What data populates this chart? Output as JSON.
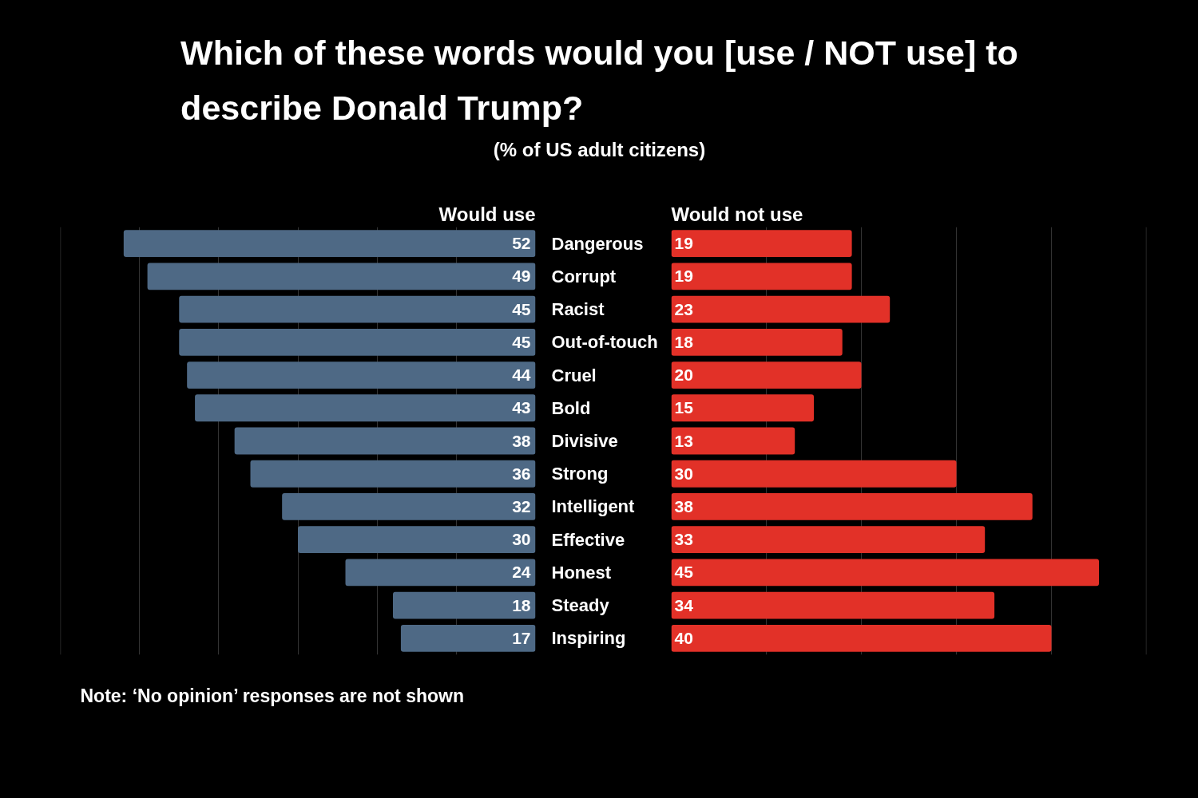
{
  "chart_data": [
    {
      "type": "other",
      "title": "Which of these words would you [use / NOT use] to describe Donald Trump?",
      "subtitle": "(% of US adult citizens)"
    },
    {
      "type": "bar",
      "orientation": "horizontal",
      "title": "Would use",
      "categories": [
        "Dangerous",
        "Corrupt",
        "Racist",
        "Out-of-touch",
        "Cruel",
        "Bold",
        "Divisive",
        "Strong",
        "Intelligent",
        "Effective",
        "Honest",
        "Steady",
        "Inspiring"
      ],
      "values": [
        52,
        49,
        45,
        45,
        44,
        43,
        38,
        36,
        32,
        30,
        24,
        18,
        17
      ],
      "color": "#4e6985",
      "xlim": [
        60,
        0
      ],
      "xticks": [
        {
          "value": 10,
          "label": null
        },
        {
          "value": 20,
          "label": null
        },
        {
          "value": 30,
          "label": null
        },
        {
          "value": 40,
          "label": null
        },
        {
          "value": 50,
          "label": null
        },
        {
          "value": 60,
          "label": null
        }
      ],
      "grid": "x",
      "data_labels": true,
      "tick_labels": "y",
      "annotations": [
        "Note: ‘No opinion’ responses are not shown"
      ]
    },
    {
      "type": "bar",
      "orientation": "horizontal",
      "title": "Would not use",
      "categories": [
        "Dangerous",
        "Corrupt",
        "Racist",
        "Out-of-touch",
        "Cruel",
        "Bold",
        "Divisive",
        "Strong",
        "Intelligent",
        "Effective",
        "Honest",
        "Steady",
        "Inspiring"
      ],
      "values": [
        19,
        19,
        23,
        18,
        20,
        15,
        13,
        30,
        38,
        33,
        45,
        34,
        40
      ],
      "color": "#e23128",
      "xlim": [
        0,
        50
      ],
      "xticks": [
        {
          "value": 10,
          "label": null
        },
        {
          "value": 20,
          "label": null
        },
        {
          "value": 30,
          "label": null
        },
        {
          "value": 40,
          "label": null
        },
        {
          "value": 50,
          "label": null
        }
      ],
      "grid": "x",
      "data_labels": true,
      "tick_labels": false
    }
  ]
}
